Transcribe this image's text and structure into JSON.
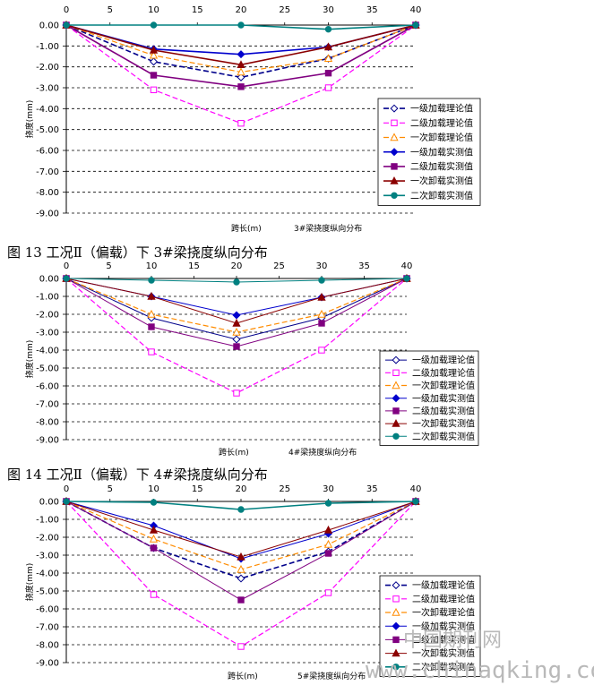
{
  "captions": [
    "图 13 工况Ⅱ（偏载）下 3#梁挠度纵向分布",
    "图 14 工况Ⅱ（偏载）下 4#梁挠度纵向分布"
  ],
  "watermark": {
    "cn": "中国期刊网",
    "url": "www.chinaqking.com"
  },
  "chart_data": [
    {
      "type": "line",
      "title": "3#梁挠度纵向分布",
      "xlabel": "跨长(m)",
      "ylabel": "挠度(mm)",
      "x_ticks": [
        "0",
        "5",
        "10",
        "15",
        "20",
        "25",
        "30",
        "35",
        "40"
      ],
      "y_ticks": [
        "0.00",
        "-1.00",
        "-2.00",
        "-3.00",
        "-4.00",
        "-5.00",
        "-6.00",
        "-7.00",
        "-8.00",
        "-9.00"
      ],
      "xlim": [
        0,
        40
      ],
      "ylim": [
        -9,
        0
      ],
      "grid": "horizontal dashed",
      "legend_position": "right",
      "x": [
        0,
        10,
        20,
        30,
        40
      ],
      "series": [
        {
          "name": "一级加载理论值",
          "values": [
            0,
            -1.75,
            -2.5,
            -1.6,
            0
          ],
          "color": "#00008b",
          "dash": "6,3",
          "marker": "diamond-open",
          "width": 1.6
        },
        {
          "name": "二级加载理论值",
          "values": [
            0,
            -3.1,
            -4.7,
            -3.0,
            0
          ],
          "color": "#ff00ff",
          "dash": "6,3",
          "marker": "square-open",
          "width": 1.2
        },
        {
          "name": "一次卸载理论值",
          "values": [
            0,
            -1.45,
            -2.25,
            -1.6,
            0
          ],
          "color": "#ff8c00",
          "dash": "6,3",
          "marker": "triangle-open",
          "width": 1.2
        },
        {
          "name": "一级加载实测值",
          "values": [
            0,
            -1.15,
            -1.4,
            -1.05,
            0
          ],
          "color": "#0000cd",
          "dash": "",
          "marker": "diamond",
          "width": 1.6
        },
        {
          "name": "二级加载实测值",
          "values": [
            0,
            -2.4,
            -2.95,
            -2.3,
            0
          ],
          "color": "#800080",
          "dash": "",
          "marker": "square",
          "width": 1.6
        },
        {
          "name": "一次卸载实测值",
          "values": [
            0,
            -1.2,
            -1.9,
            -1.05,
            0
          ],
          "color": "#8b0000",
          "dash": "",
          "marker": "triangle",
          "width": 1.6
        },
        {
          "name": "二次卸载实测值",
          "values": [
            0,
            0,
            0,
            -0.2,
            0
          ],
          "color": "#008080",
          "dash": "",
          "marker": "circle",
          "width": 1.6
        }
      ]
    },
    {
      "type": "line",
      "title": "4#梁挠度纵向分布",
      "xlabel": "跨长(m)",
      "ylabel": "挠度(mm)",
      "x_ticks": [
        "0",
        "5",
        "10",
        "15",
        "20",
        "25",
        "30",
        "35",
        "40"
      ],
      "y_ticks": [
        "0.00",
        "-1.00",
        "-2.00",
        "-3.00",
        "-4.00",
        "-5.00",
        "-6.00",
        "-7.00",
        "-8.00",
        "-9.00"
      ],
      "xlim": [
        0,
        40
      ],
      "ylim": [
        -9,
        0
      ],
      "grid": "horizontal dashed",
      "legend_position": "right",
      "x": [
        0,
        10,
        20,
        30,
        40
      ],
      "series": [
        {
          "name": "一级加载理论值",
          "values": [
            0,
            -2.2,
            -3.4,
            -2.2,
            0
          ],
          "color": "#00008b",
          "dash": "",
          "marker": "diamond-open",
          "width": 1
        },
        {
          "name": "二级加载理论值",
          "values": [
            0,
            -4.1,
            -6.4,
            -4.0,
            0
          ],
          "color": "#ff00ff",
          "dash": "6,3",
          "marker": "square-open",
          "width": 1.2
        },
        {
          "name": "一次卸载理论值",
          "values": [
            0,
            -2.0,
            -3.0,
            -2.0,
            0
          ],
          "color": "#ff8c00",
          "dash": "6,3",
          "marker": "triangle-open",
          "width": 1.2
        },
        {
          "name": "一级加载实测值",
          "values": [
            0,
            -1.0,
            -2.05,
            -1.05,
            0
          ],
          "color": "#0000cd",
          "dash": "",
          "marker": "diamond",
          "width": 1
        },
        {
          "name": "二级加载实测值",
          "values": [
            0,
            -2.7,
            -3.8,
            -2.5,
            0
          ],
          "color": "#800080",
          "dash": "",
          "marker": "square",
          "width": 1
        },
        {
          "name": "一次卸载实测值",
          "values": [
            0,
            -1.0,
            -2.5,
            -1.05,
            0
          ],
          "color": "#8b0000",
          "dash": "",
          "marker": "triangle",
          "width": 1
        },
        {
          "name": "二次卸载实测值",
          "values": [
            0,
            -0.1,
            -0.2,
            -0.1,
            0
          ],
          "color": "#008080",
          "dash": "",
          "marker": "circle",
          "width": 1
        }
      ]
    },
    {
      "type": "line",
      "title": "5#梁挠度纵向分布",
      "xlabel": "跨长(m)",
      "ylabel": "挠度(mm)",
      "x_ticks": [
        "0",
        "5",
        "10",
        "15",
        "20",
        "25",
        "30",
        "35",
        "40"
      ],
      "y_ticks": [
        "0.00",
        "-1.00",
        "-2.00",
        "-3.00",
        "-4.00",
        "-5.00",
        "-6.00",
        "-7.00",
        "-8.00",
        "-9.00"
      ],
      "xlim": [
        0,
        40
      ],
      "ylim": [
        -9,
        0
      ],
      "grid": "horizontal dashed",
      "legend_position": "right",
      "x": [
        0,
        10,
        20,
        30,
        40
      ],
      "series": [
        {
          "name": "一级加载理论值",
          "values": [
            0,
            -2.6,
            -4.3,
            -2.8,
            0
          ],
          "color": "#00008b",
          "dash": "6,3",
          "marker": "diamond-open",
          "width": 1.6
        },
        {
          "name": "二级加载理论值",
          "values": [
            0,
            -5.2,
            -8.1,
            -5.1,
            0
          ],
          "color": "#ff00ff",
          "dash": "6,3",
          "marker": "square-open",
          "width": 1.2
        },
        {
          "name": "一次卸载理论值",
          "values": [
            0,
            -2.1,
            -3.8,
            -2.4,
            0
          ],
          "color": "#ff8c00",
          "dash": "6,3",
          "marker": "triangle-open",
          "width": 1.2
        },
        {
          "name": "一级加载实测值",
          "values": [
            0,
            -1.35,
            -3.2,
            -1.8,
            0
          ],
          "color": "#0000cd",
          "dash": "",
          "marker": "diamond",
          "width": 1
        },
        {
          "name": "二级加载实测值",
          "values": [
            0,
            -2.6,
            -5.5,
            -2.9,
            0
          ],
          "color": "#800080",
          "dash": "",
          "marker": "square",
          "width": 1
        },
        {
          "name": "一次卸载实测值",
          "values": [
            0,
            -1.6,
            -3.1,
            -1.6,
            0
          ],
          "color": "#8b0000",
          "dash": "",
          "marker": "triangle",
          "width": 1
        },
        {
          "name": "二次卸载实测值",
          "values": [
            0,
            -0.05,
            -0.45,
            -0.1,
            0
          ],
          "color": "#008080",
          "dash": "",
          "marker": "circle",
          "width": 1.6
        }
      ]
    }
  ]
}
